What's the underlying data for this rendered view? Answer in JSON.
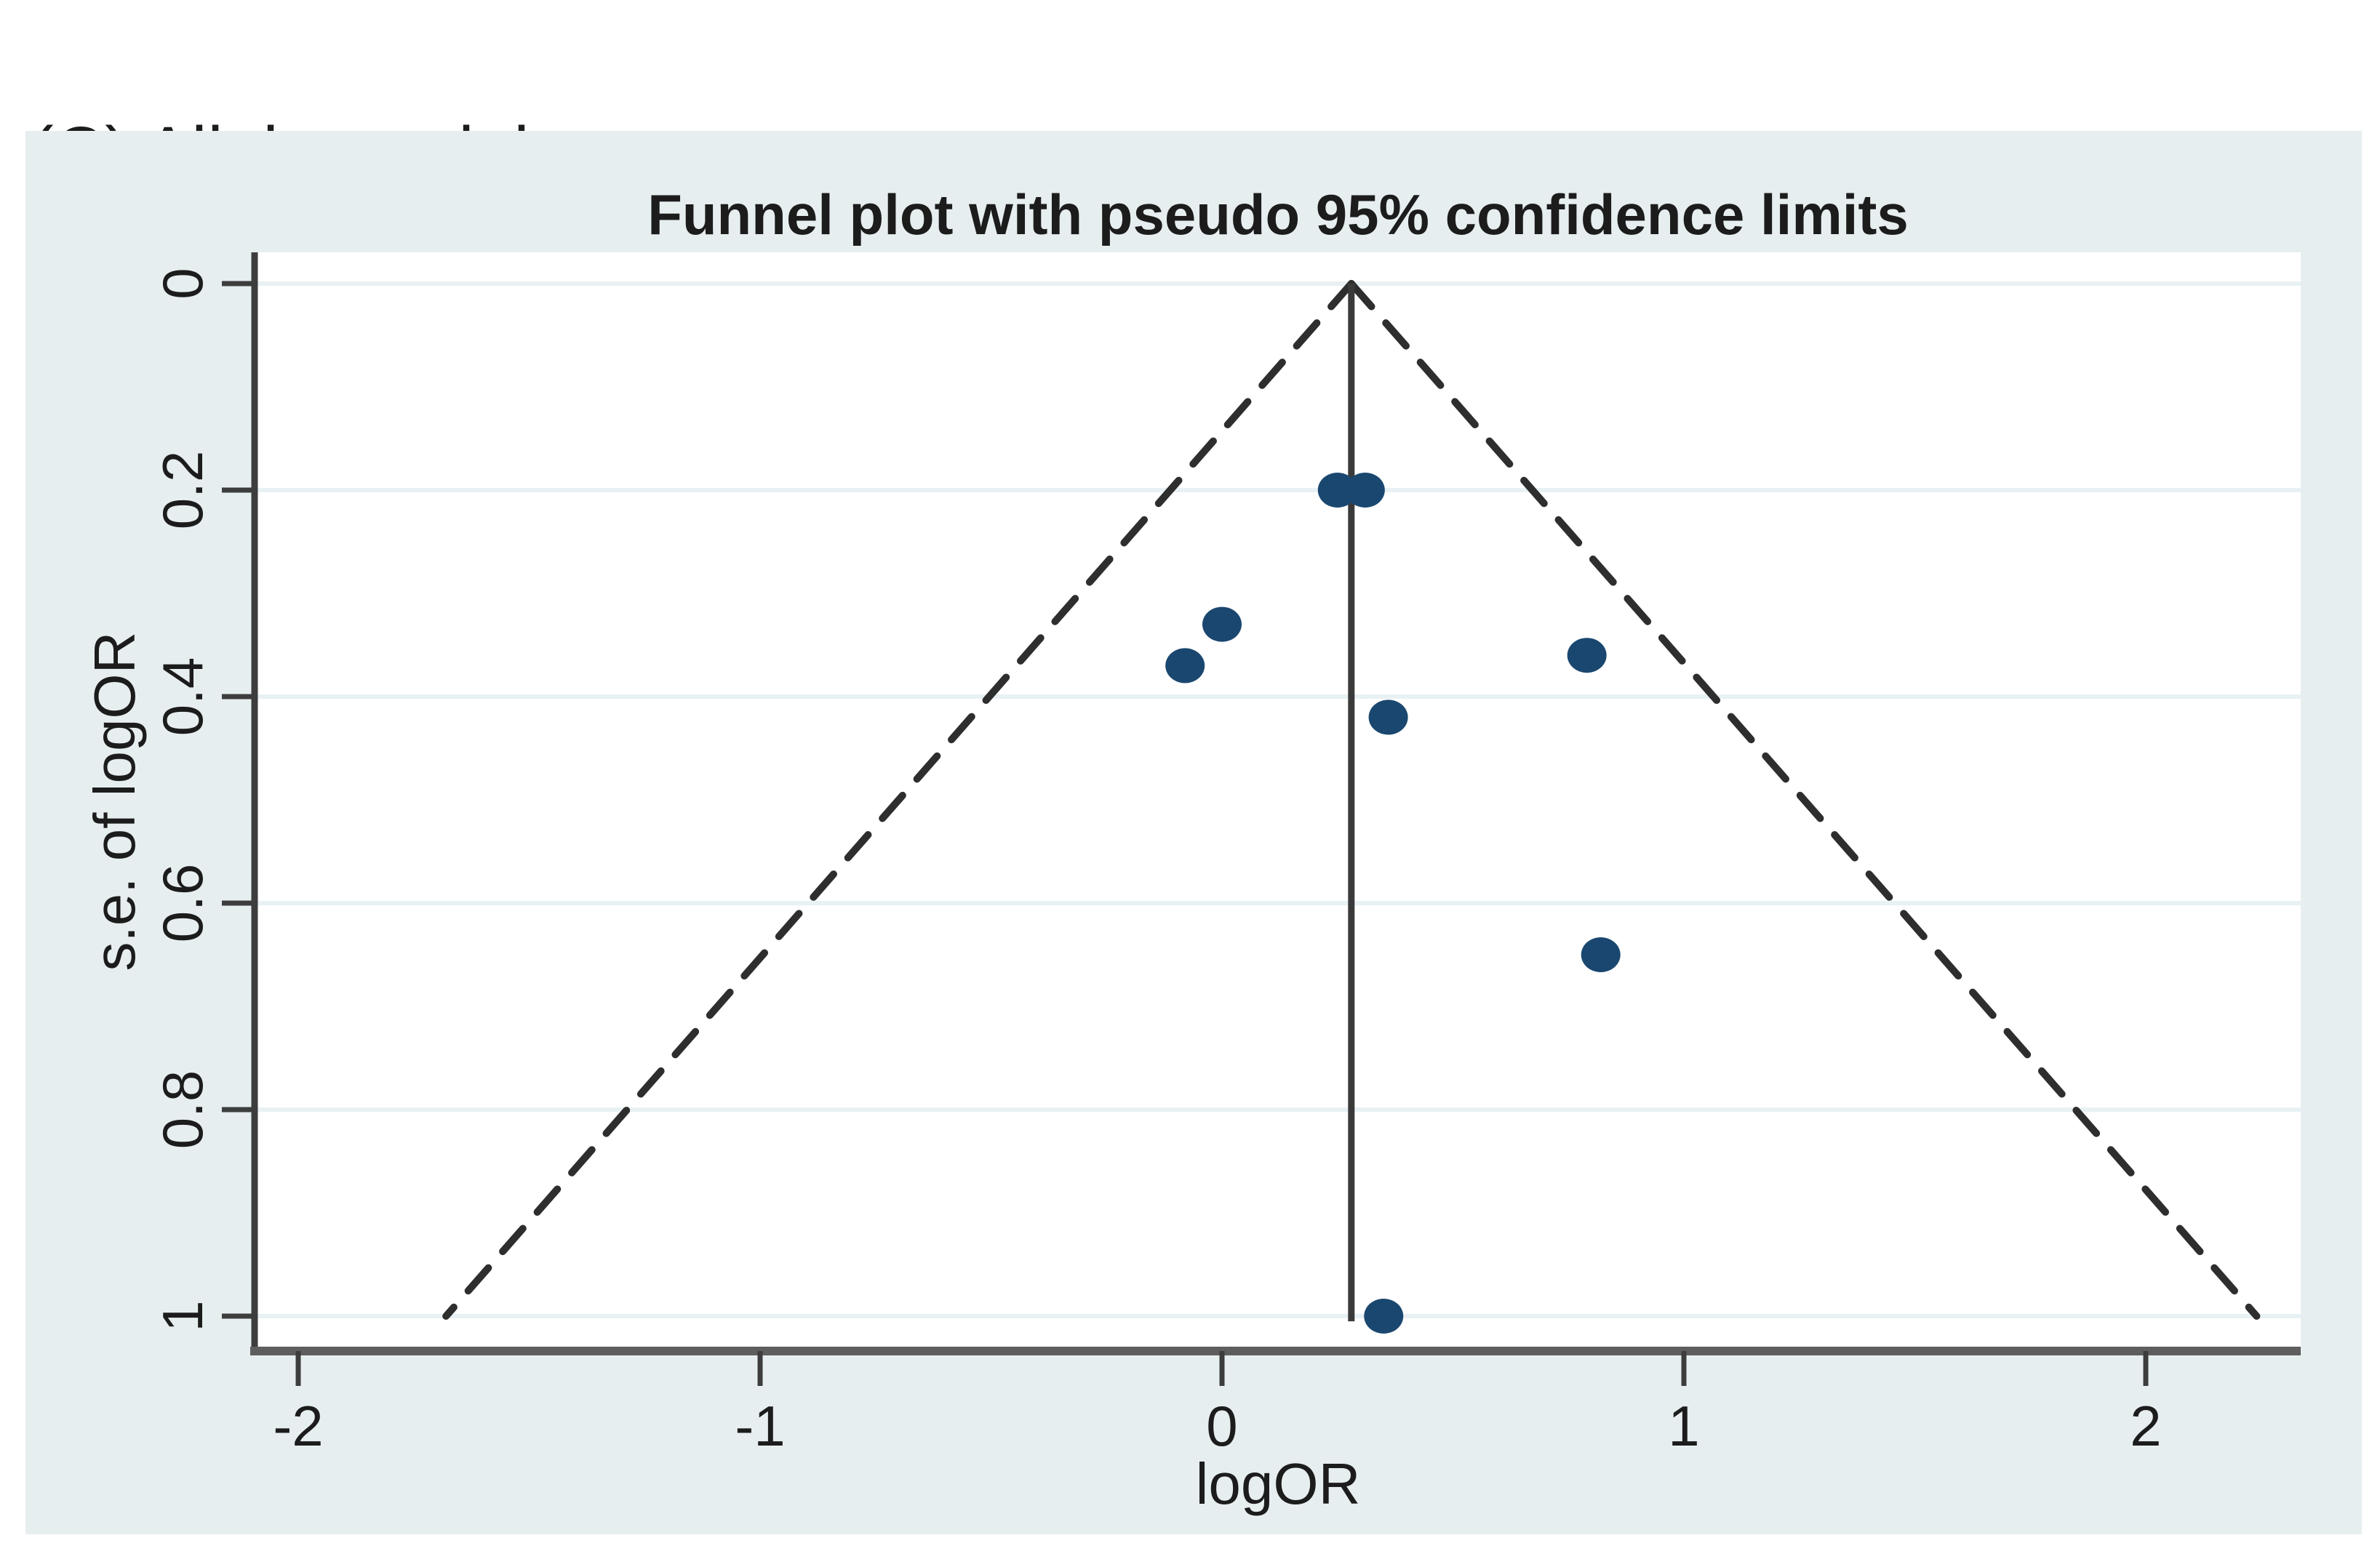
{
  "figure_label": "(C) Allele model",
  "chart_data": {
    "type": "scatter",
    "subtype": "funnel-plot",
    "title": "Funnel plot with pseudo 95% confidence limits",
    "xlabel": "logOR",
    "ylabel": "s.e. of logOR",
    "x_ticks": [
      "-2",
      "-1",
      "0",
      "1",
      "2"
    ],
    "x_tick_values": [
      -2,
      -1,
      0,
      1,
      2
    ],
    "y_ticks": [
      "0",
      "0.2",
      "0.4",
      "0.6",
      "0.8",
      "1"
    ],
    "y_tick_values": [
      0,
      0.2,
      0.4,
      0.6,
      0.8,
      1
    ],
    "xlim": [
      -2.09,
      2.33
    ],
    "ylim": [
      -0.03,
      1.03
    ],
    "y_axis_inverted": true,
    "grid": "horizontal-only",
    "legend": "none",
    "center_logOR": 0.28,
    "pseudo_ci_z": 1.96,
    "funnel_max_se": 1.0,
    "points": [
      {
        "logOR": 0.25,
        "se": 0.2
      },
      {
        "logOR": 0.31,
        "se": 0.2
      },
      {
        "logOR": 0.0,
        "se": 0.33
      },
      {
        "logOR": -0.08,
        "se": 0.37
      },
      {
        "logOR": 0.36,
        "se": 0.42
      },
      {
        "logOR": 0.79,
        "se": 0.36
      },
      {
        "logOR": 0.82,
        "se": 0.65
      },
      {
        "logOR": 0.35,
        "se": 1.0
      }
    ],
    "colors": {
      "marker": "#1a476f",
      "panel_bg": "#e7eef0",
      "plot_bg": "#ffffff",
      "grid": "#e8f1f4",
      "axis_line": "#3d3d3d",
      "x_axis_line": "#5e5e5e",
      "funnel_dashed": "#2e2e2e",
      "center_line": "#3a3a3a",
      "text": "#1c1c1c"
    }
  }
}
